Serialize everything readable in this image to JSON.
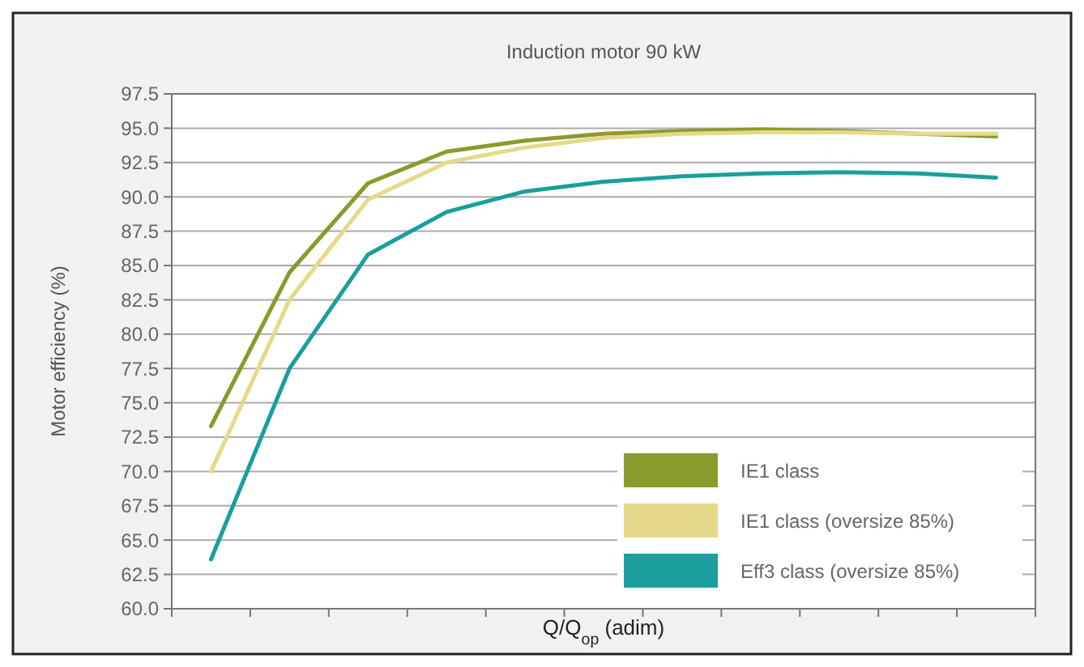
{
  "chart_data": {
    "type": "line",
    "title": "Induction motor 90 kW",
    "xlabel": "Q/Q$_{op}$ (adim)",
    "ylabel": "Motor efficiency (%)",
    "categories": [
      null,
      null,
      null,
      null,
      null,
      null,
      null,
      null,
      null,
      null,
      null
    ],
    "series": [
      {
        "name": "IE1 class",
        "color": "#8a9a2c",
        "values": [
          73.3,
          84.5,
          91.0,
          93.3,
          94.1,
          94.6,
          94.8,
          94.9,
          94.8,
          94.6,
          94.4
        ]
      },
      {
        "name": "IE1 class (oversize 85%)",
        "color": "#e6d98a",
        "values": [
          70.0,
          82.5,
          89.8,
          92.5,
          93.6,
          94.3,
          94.6,
          94.7,
          94.7,
          94.6,
          94.6
        ]
      },
      {
        "name": "Eff3 class (oversize 85%)",
        "color": "#1a9e9e",
        "values": [
          63.6,
          77.5,
          85.8,
          88.9,
          90.4,
          91.1,
          91.5,
          91.7,
          91.8,
          91.7,
          91.4
        ]
      }
    ],
    "ylim": [
      60,
      97.5
    ],
    "yticks": [
      {
        "value": 60,
        "label": "60.0"
      },
      {
        "value": 62.5,
        "label": "62.5"
      },
      {
        "value": 65,
        "label": "65.0"
      },
      {
        "value": 67.5,
        "label": "67.5"
      },
      {
        "value": 70,
        "label": "70.0"
      },
      {
        "value": 72.5,
        "label": "72.5"
      },
      {
        "value": 75,
        "label": "75.0"
      },
      {
        "value": 77.5,
        "label": "77.5"
      },
      {
        "value": 80,
        "label": "80.0"
      },
      {
        "value": 82.5,
        "label": "82.5"
      },
      {
        "value": 85,
        "label": "85.0"
      },
      {
        "value": 87.5,
        "label": "87.5"
      },
      {
        "value": 90,
        "label": "90.0"
      },
      {
        "value": 92.5,
        "label": "92.5"
      },
      {
        "value": 95,
        "label": "95.0"
      },
      {
        "value": 97.5,
        "label": "97.5"
      }
    ],
    "grid": "y",
    "legend": "bottom right",
    "marker": "none",
    "line_style": "solid",
    "tick_labels": "y"
  }
}
